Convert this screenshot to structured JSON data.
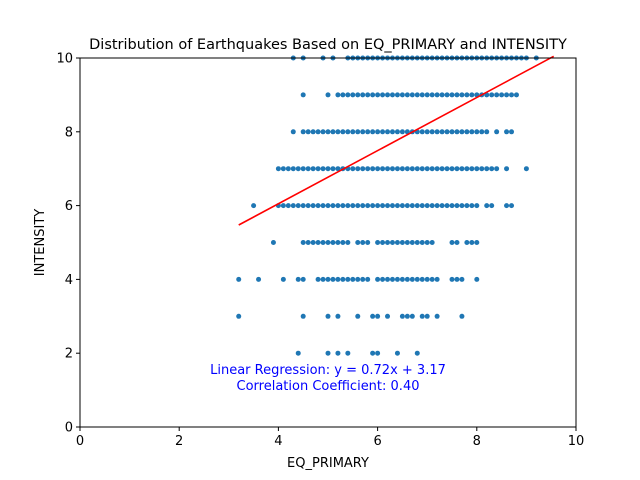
{
  "chart_data": {
    "type": "scatter",
    "title": "Distribution of Earthquakes Based on EQ_PRIMARY and INTENSITY",
    "xlabel": "EQ_PRIMARY",
    "ylabel": "INTENSITY",
    "xlim": [
      0,
      10
    ],
    "ylim": [
      0,
      10
    ],
    "xticks": [
      "0",
      "2",
      "4",
      "6",
      "8",
      "10"
    ],
    "yticks": [
      "0",
      "2",
      "4",
      "6",
      "8",
      "10"
    ],
    "grid": false,
    "point_color": "#1f77b4",
    "points": [
      {
        "y": 2,
        "x": [
          4.4,
          5.0,
          5.2,
          5.4,
          5.9,
          6.0,
          6.4,
          6.8
        ]
      },
      {
        "y": 3,
        "x": [
          3.2,
          4.5,
          5.0,
          5.2,
          5.6,
          5.9,
          6.0,
          6.2,
          6.5,
          6.6,
          6.7,
          6.9,
          7.0,
          7.2,
          7.7
        ]
      },
      {
        "y": 4,
        "x": [
          3.2,
          3.6,
          4.1,
          4.4,
          4.5,
          4.8,
          4.9,
          5.0,
          5.1,
          5.2,
          5.3,
          5.4,
          5.5,
          5.6,
          5.7,
          5.8,
          6.0,
          6.1,
          6.2,
          6.3,
          6.4,
          6.5,
          6.6,
          6.7,
          6.8,
          6.9,
          7.0,
          7.1,
          7.2,
          7.5,
          7.6,
          7.7,
          8.0
        ]
      },
      {
        "y": 5,
        "x": [
          3.9,
          4.5,
          4.6,
          4.7,
          4.8,
          4.9,
          5.0,
          5.1,
          5.2,
          5.3,
          5.4,
          5.6,
          5.7,
          5.8,
          6.0,
          6.1,
          6.2,
          6.3,
          6.4,
          6.5,
          6.6,
          6.7,
          6.8,
          6.9,
          7.0,
          7.1,
          7.5,
          7.6,
          7.8,
          7.9,
          8.0
        ]
      },
      {
        "y": 6,
        "x": [
          3.5,
          4.0,
          4.1,
          4.2,
          4.3,
          4.4,
          4.5,
          4.6,
          4.7,
          4.8,
          4.9,
          5.0,
          5.1,
          5.2,
          5.3,
          5.4,
          5.5,
          5.6,
          5.7,
          5.8,
          5.9,
          6.0,
          6.1,
          6.2,
          6.3,
          6.4,
          6.5,
          6.6,
          6.7,
          6.8,
          6.9,
          7.0,
          7.1,
          7.2,
          7.3,
          7.4,
          7.5,
          7.6,
          7.7,
          7.8,
          7.9,
          8.0,
          8.2,
          8.3,
          8.6,
          8.7
        ]
      },
      {
        "y": 7,
        "x": [
          4.0,
          4.1,
          4.2,
          4.3,
          4.4,
          4.5,
          4.6,
          4.7,
          4.8,
          4.9,
          5.0,
          5.1,
          5.2,
          5.3,
          5.4,
          5.5,
          5.6,
          5.7,
          5.8,
          5.9,
          6.0,
          6.1,
          6.2,
          6.3,
          6.4,
          6.5,
          6.6,
          6.7,
          6.8,
          6.9,
          7.0,
          7.1,
          7.2,
          7.3,
          7.4,
          7.5,
          7.6,
          7.7,
          7.8,
          7.9,
          8.0,
          8.1,
          8.2,
          8.3,
          8.4,
          8.6,
          9.0
        ]
      },
      {
        "y": 8,
        "x": [
          4.3,
          4.5,
          4.6,
          4.7,
          4.8,
          4.9,
          5.0,
          5.1,
          5.2,
          5.3,
          5.4,
          5.5,
          5.6,
          5.7,
          5.8,
          5.9,
          6.0,
          6.1,
          6.2,
          6.3,
          6.4,
          6.5,
          6.6,
          6.7,
          6.8,
          6.9,
          7.0,
          7.1,
          7.2,
          7.3,
          7.4,
          7.5,
          7.6,
          7.7,
          7.8,
          7.9,
          8.0,
          8.1,
          8.2,
          8.4,
          8.6,
          8.7
        ]
      },
      {
        "y": 9,
        "x": [
          4.5,
          5.0,
          5.2,
          5.3,
          5.4,
          5.5,
          5.6,
          5.7,
          5.8,
          5.9,
          6.0,
          6.1,
          6.2,
          6.3,
          6.4,
          6.5,
          6.6,
          6.7,
          6.8,
          6.9,
          7.0,
          7.1,
          7.2,
          7.3,
          7.4,
          7.5,
          7.6,
          7.7,
          7.8,
          7.9,
          8.0,
          8.1,
          8.2,
          8.3,
          8.4,
          8.5,
          8.6,
          8.7,
          8.8
        ]
      },
      {
        "y": 10,
        "x": [
          4.3,
          4.5,
          4.9,
          5.1,
          5.4,
          5.5,
          5.6,
          5.7,
          5.8,
          5.9,
          6.0,
          6.1,
          6.2,
          6.3,
          6.4,
          6.5,
          6.6,
          6.7,
          6.8,
          6.9,
          7.0,
          7.1,
          7.2,
          7.3,
          7.4,
          7.5,
          7.6,
          7.7,
          7.8,
          7.9,
          8.0,
          8.1,
          8.2,
          8.3,
          8.4,
          8.5,
          8.6,
          8.7,
          8.8,
          8.9,
          9.0,
          9.2
        ]
      }
    ],
    "regression": {
      "slope": 0.72,
      "intercept": 3.17,
      "x_start": 3.2,
      "x_end": 9.55,
      "color": "#ff0000"
    },
    "annotations": {
      "line1": "Linear Regression: y = 0.72x + 3.17",
      "line2": "Correlation Coefficient: 0.40",
      "color": "#0000ff"
    }
  }
}
